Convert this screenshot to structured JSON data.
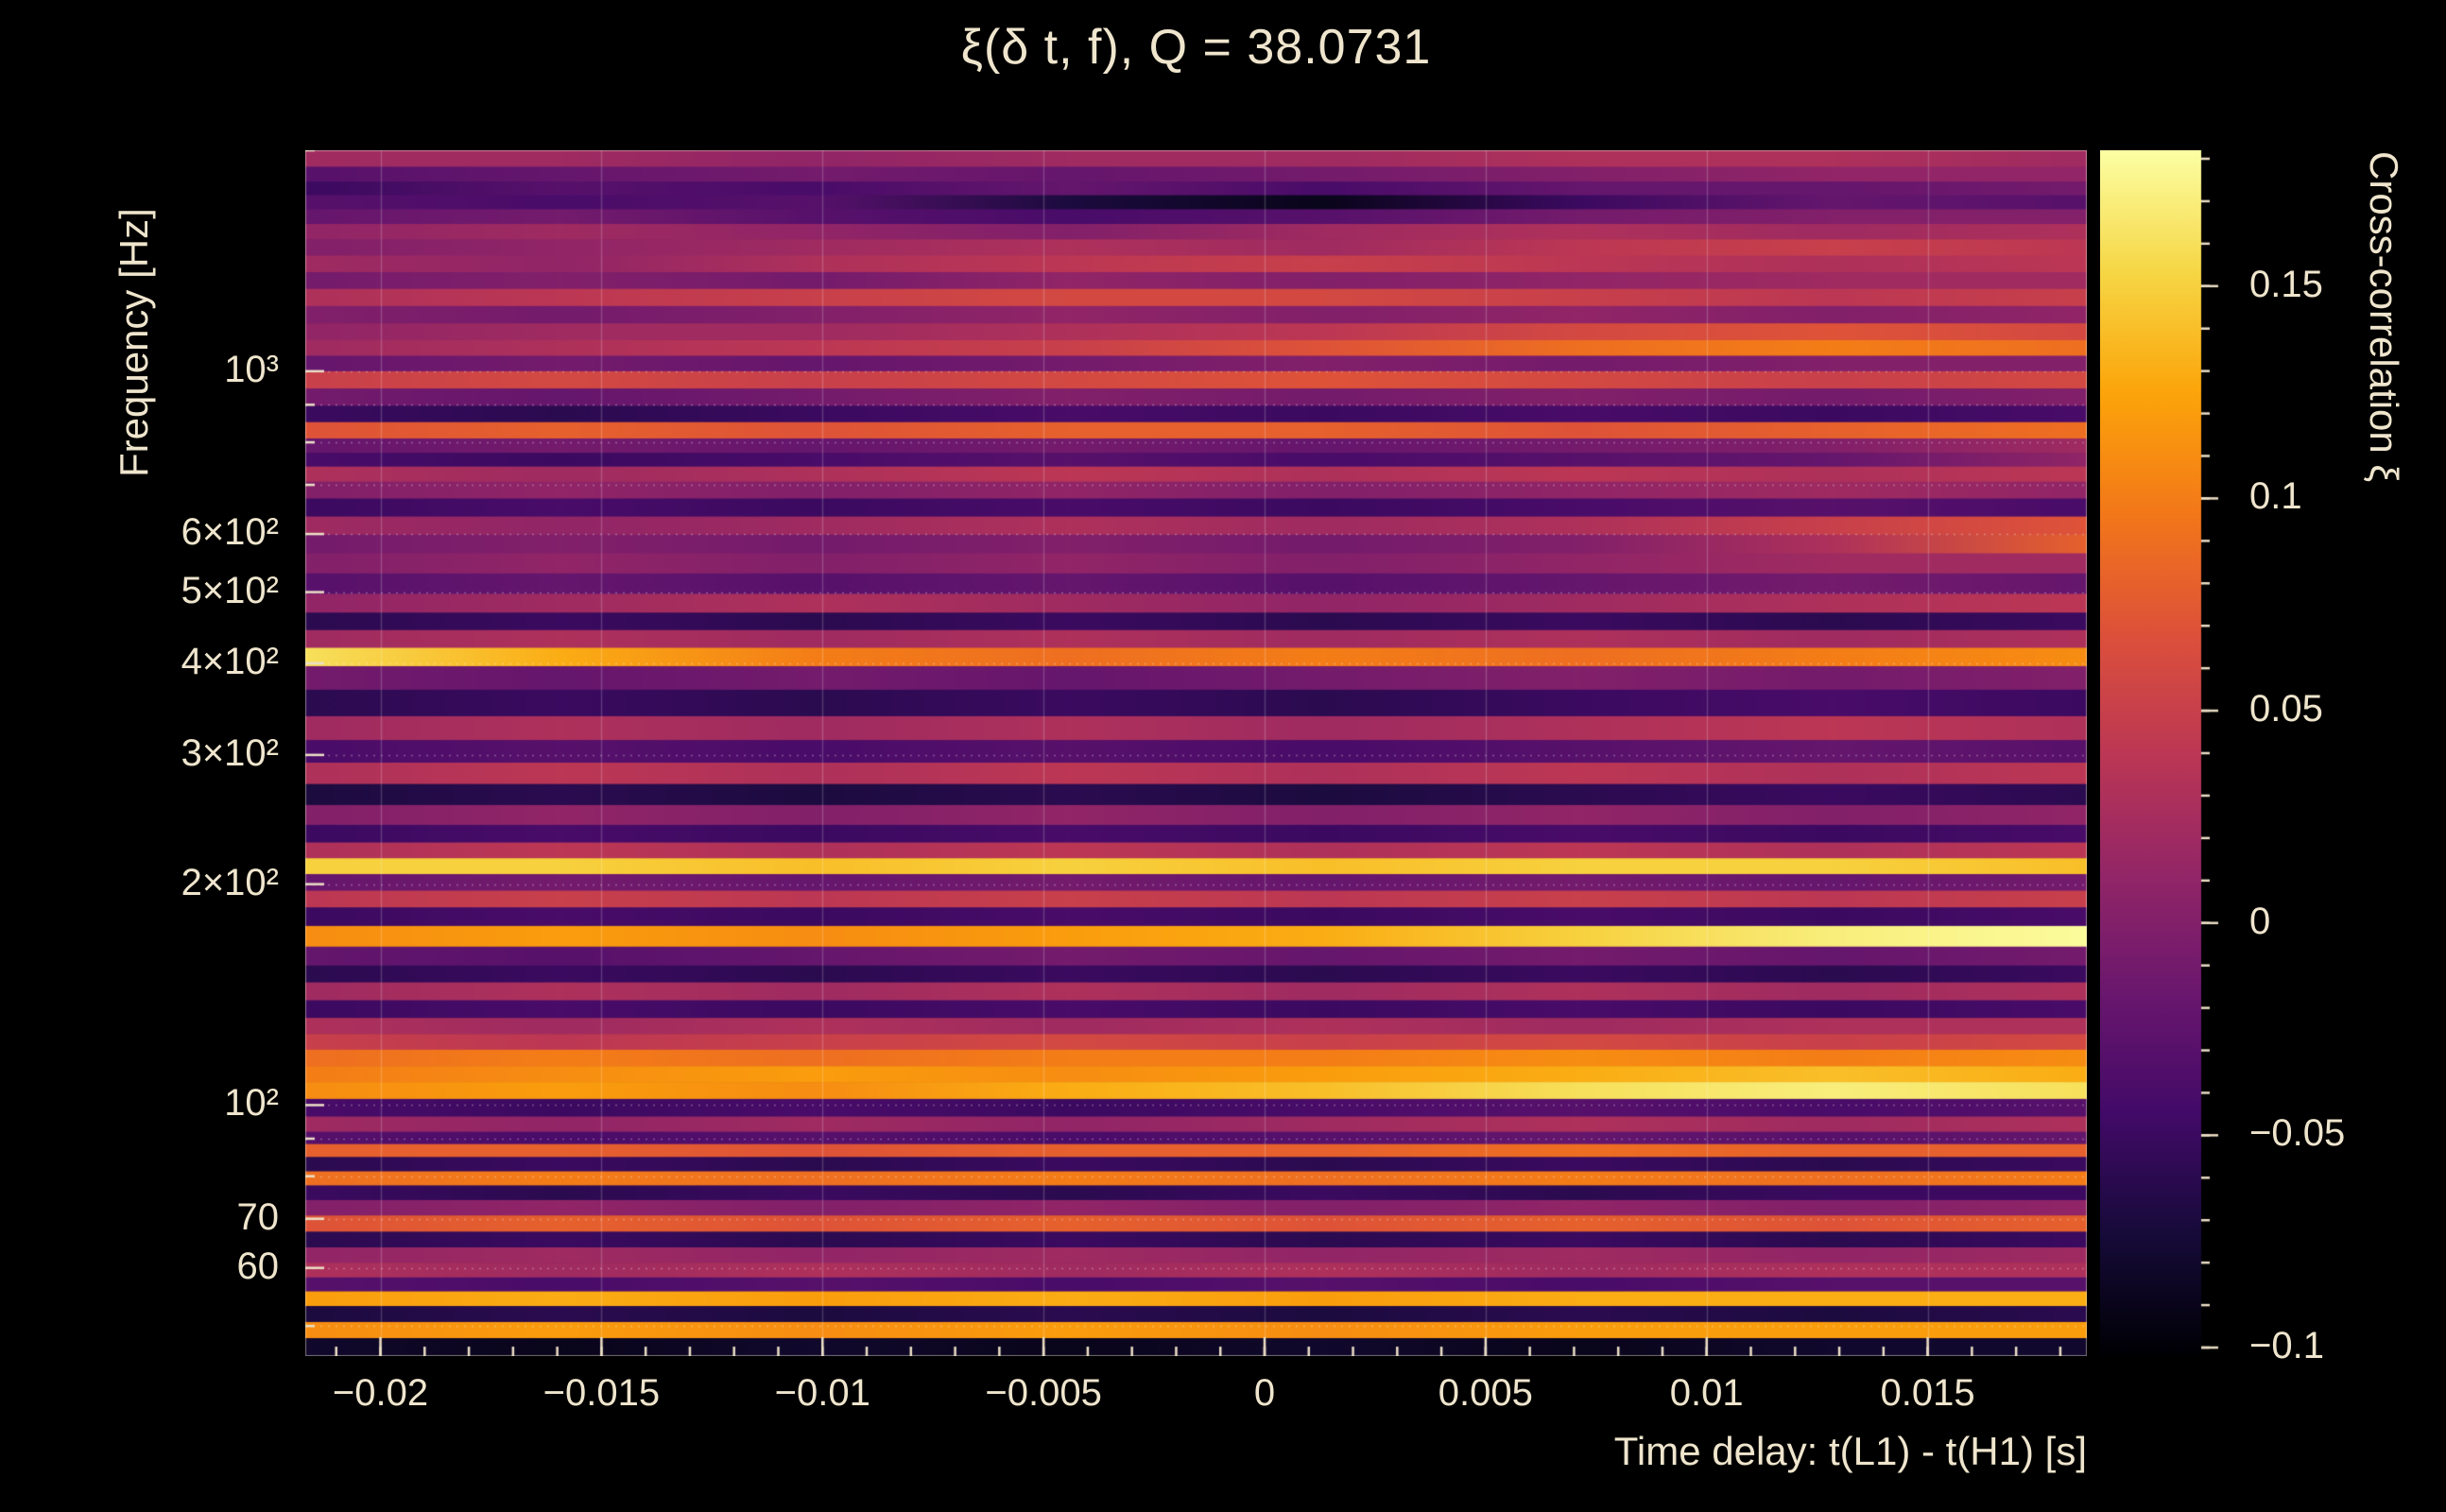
{
  "q_value": 38.0731,
  "colors": {
    "background": "#000000",
    "text": "#efe5cd",
    "grid": "rgba(255,255,255,0.28)"
  },
  "chart_data": {
    "type": "heatmap",
    "title": "ξ(δ t, f), Q = 38.0731",
    "xlabel": "Time delay: t(L1) - t(H1) [s]",
    "ylabel": "Frequency [Hz]",
    "colorbar_label": "Cross-correlation ξ",
    "x_range": [
      -0.0217,
      0.0186
    ],
    "y_range": [
      45.5,
      2000
    ],
    "y_scale": "log",
    "z_range": [
      -0.102,
      0.182
    ],
    "x_minor_step": 0.001,
    "x_ticks": {
      "values": [
        -0.02,
        -0.015,
        -0.01,
        -0.005,
        0,
        0.005,
        0.01,
        0.015
      ],
      "labels": [
        "−0.02",
        "−0.015",
        "−0.01",
        "−0.005",
        "0",
        "0.005",
        "0.01",
        "0.015"
      ]
    },
    "y_ticks": {
      "values": [
        1000,
        600,
        500,
        400,
        300,
        200,
        100,
        70,
        60
      ],
      "labels": [
        "10³",
        "6×10²",
        "5×10²",
        "4×10²",
        "3×10²",
        "2×10²",
        "10²",
        "70",
        "60"
      ]
    },
    "y_minor_ticks": [
      50,
      60,
      70,
      80,
      90,
      100,
      200,
      300,
      400,
      500,
      600,
      700,
      800,
      900,
      1000,
      2000
    ],
    "grid_y_values": [
      50,
      60,
      70,
      80,
      90,
      100,
      200,
      300,
      400,
      500,
      600,
      700,
      800,
      900,
      1000
    ],
    "colorbar_ticks": {
      "values": [
        0.15,
        0.1,
        0.05,
        0,
        -0.05,
        -0.1
      ],
      "labels": [
        "0.15",
        "0.1",
        "0.05",
        "0",
        "−0.05",
        "−0.1"
      ]
    },
    "colormap": [
      [
        0,
        "#000004"
      ],
      [
        0.1,
        "#160b39"
      ],
      [
        0.2,
        "#420a68"
      ],
      [
        0.3,
        "#6a176e"
      ],
      [
        0.4,
        "#932667"
      ],
      [
        0.5,
        "#bc3754"
      ],
      [
        0.6,
        "#dd513a"
      ],
      [
        0.7,
        "#f37819"
      ],
      [
        0.8,
        "#fca50a"
      ],
      [
        0.9,
        "#f6d746"
      ],
      [
        1,
        "#fcffa4"
      ]
    ],
    "rows": [
      {
        "f": 1950,
        "v": [
          0.02,
          0.02,
          0.01,
          0.02,
          0.02,
          0.03,
          0.03,
          0.02
        ]
      },
      {
        "f": 1850,
        "v": [
          -0.03,
          -0.02,
          -0.01,
          -0.02,
          -0.01,
          0,
          0.01,
          0.01
        ]
      },
      {
        "f": 1775,
        "v": [
          -0.05,
          -0.03,
          -0.04,
          -0.02,
          -0.04,
          -0.02,
          -0.02,
          -0.01
        ]
      },
      {
        "f": 1700,
        "v": [
          -0.03,
          -0.04,
          -0.03,
          -0.07,
          -0.09,
          -0.05,
          -0.02,
          -0.03
        ]
      },
      {
        "f": 1625,
        "v": [
          -0.02,
          -0.01,
          -0.03,
          -0.04,
          -0.03,
          -0.01,
          0,
          0
        ]
      },
      {
        "f": 1550,
        "v": [
          0.01,
          0.02,
          0.01,
          0,
          0.02,
          0.03,
          0.02,
          0.03
        ]
      },
      {
        "f": 1475,
        "v": [
          0,
          0.01,
          0.02,
          0.03,
          0.02,
          0.04,
          0.05,
          0.04
        ]
      },
      {
        "f": 1400,
        "v": [
          0.02,
          0.01,
          0.03,
          0.04,
          0.05,
          0.04,
          0.03,
          0.04
        ]
      },
      {
        "f": 1330,
        "v": [
          -0.01,
          0,
          -0.01,
          0.01,
          0,
          0.01,
          0.02,
          0.02
        ]
      },
      {
        "f": 1260,
        "v": [
          0.03,
          0.04,
          0.05,
          0.06,
          0.06,
          0.05,
          0.04,
          0.05
        ]
      },
      {
        "f": 1195,
        "v": [
          0,
          -0.01,
          0,
          0.01,
          0,
          0.01,
          0,
          0.01
        ]
      },
      {
        "f": 1130,
        "v": [
          0.01,
          0.02,
          0.02,
          0.03,
          0.04,
          0.06,
          0.07,
          0.06
        ]
      },
      {
        "f": 1075,
        "v": [
          0.02,
          0.03,
          0.04,
          0.05,
          0.07,
          0.09,
          0.1,
          0.09
        ]
      },
      {
        "f": 1025,
        "v": [
          -0.02,
          -0.01,
          -0.02,
          -0.01,
          0,
          -0.01,
          0,
          0
        ]
      },
      {
        "f": 975,
        "v": [
          0.05,
          0.06,
          0.05,
          0.06,
          0.07,
          0.06,
          0.05,
          0.06
        ]
      },
      {
        "f": 920,
        "v": [
          -0.01,
          -0.02,
          -0.01,
          0,
          -0.01,
          0,
          -0.01,
          0
        ]
      },
      {
        "f": 875,
        "v": [
          -0.05,
          -0.06,
          -0.05,
          -0.04,
          -0.05,
          -0.04,
          -0.05,
          -0.04
        ]
      },
      {
        "f": 830,
        "v": [
          0.07,
          0.08,
          0.07,
          0.08,
          0.08,
          0.07,
          0.08,
          0.09
        ]
      },
      {
        "f": 790,
        "v": [
          -0.02,
          -0.01,
          -0.02,
          -0.01,
          -0.02,
          -0.01,
          0,
          0.02
        ]
      },
      {
        "f": 758,
        "v": [
          -0.04,
          -0.05,
          -0.04,
          -0.03,
          -0.04,
          -0.03,
          -0.02,
          0.01
        ]
      },
      {
        "f": 725,
        "v": [
          0.03,
          0.02,
          0.03,
          0.04,
          0.03,
          0.04,
          0.03,
          0.04
        ]
      },
      {
        "f": 690,
        "v": [
          0,
          0.01,
          0,
          0.01,
          0,
          0.01,
          0.02,
          0.01
        ]
      },
      {
        "f": 652,
        "v": [
          -0.05,
          -0.04,
          -0.05,
          -0.04,
          -0.05,
          -0.04,
          -0.03,
          -0.04
        ]
      },
      {
        "f": 616,
        "v": [
          0.02,
          0.01,
          0.02,
          0.03,
          0.02,
          0.03,
          0.05,
          0.07
        ]
      },
      {
        "f": 582,
        "v": [
          -0.01,
          0,
          -0.01,
          0,
          -0.01,
          0,
          0.03,
          0.08
        ]
      },
      {
        "f": 548,
        "v": [
          0,
          0.01,
          0,
          0.01,
          0,
          0.01,
          0.02,
          0.02
        ]
      },
      {
        "f": 513,
        "v": [
          -0.03,
          -0.02,
          -0.03,
          -0.02,
          -0.03,
          -0.02,
          -0.01,
          -0.02
        ]
      },
      {
        "f": 482,
        "v": [
          0.01,
          0.02,
          0.03,
          0.02,
          0.01,
          0.02,
          0.03,
          0.04
        ]
      },
      {
        "f": 456,
        "v": [
          -0.06,
          -0.05,
          -0.06,
          -0.05,
          -0.06,
          -0.05,
          -0.06,
          -0.05
        ]
      },
      {
        "f": 432,
        "v": [
          0.02,
          0.03,
          0.02,
          0.03,
          0.02,
          0.03,
          0.02,
          0.03
        ]
      },
      {
        "f": 408,
        "v": [
          0.16,
          0.13,
          0.1,
          0.09,
          0.1,
          0.09,
          0.1,
          0.11
        ]
      },
      {
        "f": 385,
        "v": [
          -0.01,
          -0.02,
          -0.01,
          -0.02,
          -0.01,
          0,
          -0.01,
          0
        ]
      },
      {
        "f": 352,
        "v": [
          -0.06,
          -0.05,
          -0.06,
          -0.05,
          -0.06,
          -0.05,
          -0.04,
          -0.05
        ]
      },
      {
        "f": 326,
        "v": [
          0.02,
          0.03,
          0.02,
          0.03,
          0.02,
          0.03,
          0.04,
          0.03
        ]
      },
      {
        "f": 303,
        "v": [
          -0.04,
          -0.03,
          -0.04,
          -0.03,
          -0.04,
          -0.03,
          -0.02,
          -0.03
        ]
      },
      {
        "f": 283,
        "v": [
          0.03,
          0.04,
          0.03,
          0.04,
          0.03,
          0.04,
          0.03,
          0.04
        ]
      },
      {
        "f": 265,
        "v": [
          -0.07,
          -0.06,
          -0.07,
          -0.06,
          -0.07,
          -0.06,
          -0.05,
          -0.06
        ]
      },
      {
        "f": 248,
        "v": [
          0,
          0.01,
          0,
          0.01,
          0,
          0.01,
          0,
          0.01
        ]
      },
      {
        "f": 234,
        "v": [
          -0.05,
          -0.04,
          -0.05,
          -0.04,
          -0.05,
          -0.04,
          -0.05,
          -0.04
        ]
      },
      {
        "f": 222,
        "v": [
          0.03,
          0.04,
          0.03,
          0.04,
          0.03,
          0.04,
          0.03,
          0.04
        ]
      },
      {
        "f": 212,
        "v": [
          0.15,
          0.15,
          0.14,
          0.15,
          0.14,
          0.15,
          0.15,
          0.14
        ]
      },
      {
        "f": 201,
        "v": [
          -0.02,
          -0.01,
          -0.02,
          -0.01,
          -0.02,
          -0.01,
          -0.02,
          -0.01
        ]
      },
      {
        "f": 191,
        "v": [
          0.04,
          0.05,
          0.04,
          0.05,
          0.04,
          0.05,
          0.04,
          0.05
        ]
      },
      {
        "f": 181,
        "v": [
          -0.05,
          -0.04,
          -0.05,
          -0.04,
          -0.05,
          -0.04,
          -0.05,
          -0.04
        ]
      },
      {
        "f": 170,
        "v": [
          0.11,
          0.12,
          0.11,
          0.12,
          0.13,
          0.15,
          0.17,
          0.18
        ]
      },
      {
        "f": 159,
        "v": [
          -0.02,
          -0.03,
          -0.02,
          -0.01,
          -0.02,
          -0.01,
          -0.02,
          -0.01
        ]
      },
      {
        "f": 151,
        "v": [
          -0.06,
          -0.05,
          -0.06,
          -0.05,
          -0.06,
          -0.05,
          -0.06,
          -0.05
        ]
      },
      {
        "f": 143,
        "v": [
          0.02,
          0.03,
          0.02,
          0.03,
          0.02,
          0.03,
          0.02,
          0.03
        ]
      },
      {
        "f": 135,
        "v": [
          -0.05,
          -0.04,
          -0.05,
          -0.04,
          -0.05,
          -0.04,
          -0.05,
          -0.04
        ]
      },
      {
        "f": 128,
        "v": [
          0.03,
          0.02,
          0.03,
          0.02,
          0.03,
          0.02,
          0.03,
          0.03
        ]
      },
      {
        "f": 122,
        "v": [
          0.05,
          0.04,
          0.05,
          0.06,
          0.05,
          0.06,
          0.05,
          0.06
        ]
      },
      {
        "f": 116,
        "v": [
          0.09,
          0.1,
          0.09,
          0.1,
          0.1,
          0.11,
          0.1,
          0.11
        ]
      },
      {
        "f": 110,
        "v": [
          0.1,
          0.11,
          0.12,
          0.11,
          0.12,
          0.13,
          0.14,
          0.13
        ]
      },
      {
        "f": 105,
        "v": [
          0.11,
          0.12,
          0.11,
          0.13,
          0.14,
          0.16,
          0.17,
          0.16
        ]
      },
      {
        "f": 99,
        "v": [
          -0.04,
          -0.05,
          -0.04,
          -0.05,
          -0.04,
          -0.03,
          -0.04,
          -0.03
        ]
      },
      {
        "f": 94,
        "v": [
          0.02,
          0.01,
          0.02,
          0.01,
          0.02,
          0.03,
          0.02,
          0.03
        ]
      },
      {
        "f": 90,
        "v": [
          -0.03,
          -0.04,
          -0.03,
          -0.04,
          -0.03,
          -0.02,
          -0.03,
          -0.02
        ]
      },
      {
        "f": 87,
        "v": [
          0.08,
          0.08,
          0.07,
          0.08,
          0.08,
          0.09,
          0.08,
          0.08
        ]
      },
      {
        "f": 83,
        "v": [
          -0.06,
          -0.05,
          -0.06,
          -0.05,
          -0.06,
          -0.05,
          -0.06,
          -0.05
        ]
      },
      {
        "f": 79.5,
        "v": [
          0.09,
          0.1,
          0.09,
          0.1,
          0.09,
          0.1,
          0.09,
          0.1
        ]
      },
      {
        "f": 76,
        "v": [
          -0.05,
          -0.06,
          -0.05,
          -0.06,
          -0.05,
          -0.06,
          -0.05,
          -0.05
        ]
      },
      {
        "f": 72.5,
        "v": [
          0,
          0.01,
          0,
          0.01,
          0,
          0.01,
          0,
          0.01
        ]
      },
      {
        "f": 69,
        "v": [
          0.07,
          0.08,
          0.07,
          0.08,
          0.07,
          0.08,
          0.07,
          0.08
        ]
      },
      {
        "f": 65.5,
        "v": [
          -0.06,
          -0.05,
          -0.06,
          -0.05,
          -0.06,
          -0.05,
          -0.06,
          -0.05
        ]
      },
      {
        "f": 62.5,
        "v": [
          0.01,
          0.02,
          0.01,
          0.02,
          0.01,
          0.02,
          0.01,
          0.02
        ]
      },
      {
        "f": 59.5,
        "v": [
          0.03,
          0.02,
          0.03,
          0.02,
          0.03,
          0.02,
          0.03,
          0.03
        ]
      },
      {
        "f": 57,
        "v": [
          -0.03,
          -0.04,
          -0.03,
          -0.04,
          -0.03,
          -0.04,
          -0.03,
          -0.03
        ]
      },
      {
        "f": 54.5,
        "v": [
          0.12,
          0.13,
          0.12,
          0.13,
          0.12,
          0.13,
          0.13,
          0.13
        ]
      },
      {
        "f": 52,
        "v": [
          -0.07,
          -0.06,
          -0.07,
          -0.06,
          -0.07,
          -0.06,
          -0.07,
          -0.06
        ]
      },
      {
        "f": 49.3,
        "v": [
          0.11,
          0.12,
          0.11,
          0.12,
          0.11,
          0.12,
          0.12,
          0.12
        ]
      },
      {
        "f": 47,
        "v": [
          -0.08,
          -0.09,
          -0.08,
          -0.09,
          -0.08,
          -0.09,
          -0.08,
          -0.08
        ]
      }
    ]
  }
}
